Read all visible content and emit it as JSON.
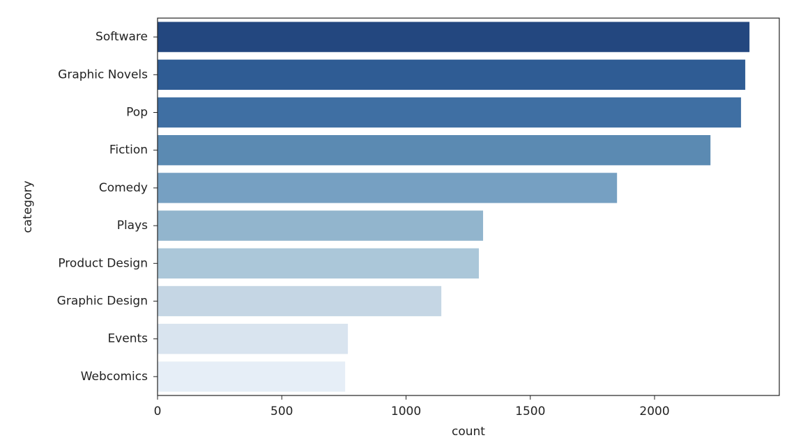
{
  "chart_data": {
    "type": "bar",
    "orientation": "horizontal",
    "categories": [
      "Software",
      "Graphic Novels",
      "Pop",
      "Fiction",
      "Comedy",
      "Plays",
      "Product Design",
      "Graphic Design",
      "Events",
      "Webcomics"
    ],
    "values": [
      2382,
      2365,
      2348,
      2225,
      1849,
      1310,
      1293,
      1142,
      766,
      755
    ],
    "colors": [
      "#23477f",
      "#2f5c94",
      "#3f6fa3",
      "#5b8ab2",
      "#76a0c2",
      "#92b5cd",
      "#abc7d9",
      "#c5d6e4",
      "#d9e4ef",
      "#e6eef7"
    ],
    "x_label": "count",
    "y_label": "category",
    "xlim": [
      0,
      2502
    ],
    "xticks": [
      0,
      500,
      1000,
      1500,
      2000
    ]
  }
}
